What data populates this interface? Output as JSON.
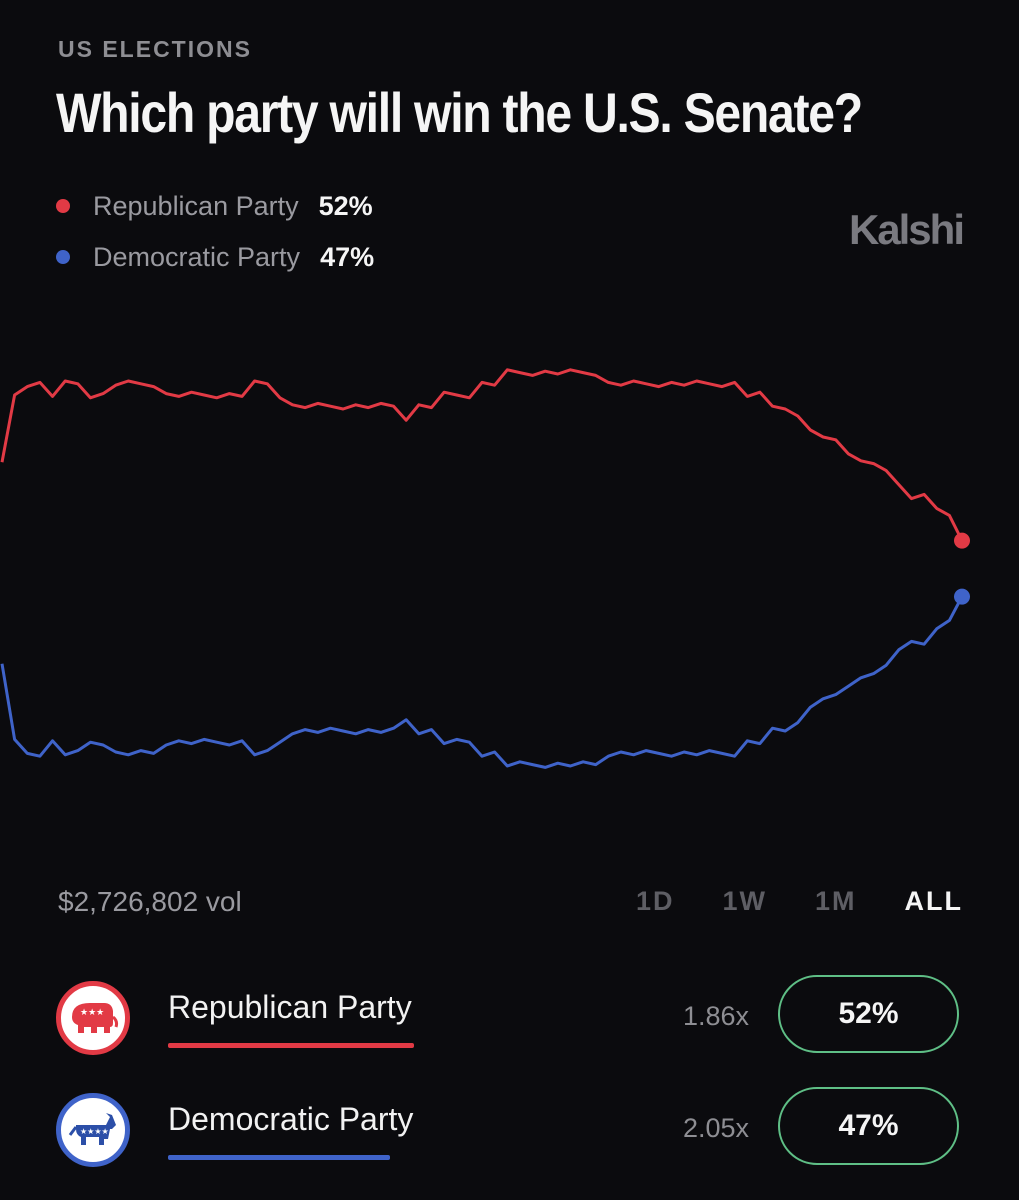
{
  "header": {
    "category": "US ELECTIONS",
    "title": "Which party will win the U.S. Senate?",
    "brand": "Kalshi"
  },
  "legend": [
    {
      "label": "Republican Party",
      "pct": "52%",
      "color": "#e23a45"
    },
    {
      "label": "Democratic Party",
      "pct": "47%",
      "color": "#3f63c9"
    }
  ],
  "chart_data": {
    "type": "line",
    "grid": false,
    "legend": "top-left",
    "ylim": [
      0,
      100
    ],
    "series": [
      {
        "name": "Republican Party",
        "color": "#e23a45",
        "values": [
          59,
          65,
          66,
          66,
          65,
          66,
          66,
          65,
          65,
          66,
          66,
          66,
          66,
          65,
          65,
          65,
          65,
          65,
          65,
          65,
          66,
          66,
          65,
          64,
          64,
          64,
          64,
          64,
          64,
          64,
          64,
          64,
          63,
          64,
          64,
          65,
          65,
          65,
          66,
          66,
          67,
          67,
          67,
          67,
          67,
          67,
          67,
          67,
          66,
          66,
          66,
          66,
          66,
          66,
          66,
          66,
          66,
          66,
          66,
          65,
          65,
          64,
          64,
          63,
          62,
          61,
          61,
          60,
          59,
          59,
          58,
          57,
          56,
          56,
          55,
          54,
          52
        ]
      },
      {
        "name": "Democratic Party",
        "color": "#3f63c9",
        "values": [
          41,
          34,
          33,
          33,
          34,
          33,
          33,
          34,
          34,
          33,
          33,
          33,
          33,
          34,
          34,
          34,
          34,
          34,
          34,
          34,
          33,
          33,
          34,
          35,
          35,
          35,
          35,
          35,
          35,
          35,
          35,
          35,
          36,
          35,
          35,
          34,
          34,
          34,
          33,
          33,
          32,
          32,
          32,
          32,
          32,
          32,
          32,
          32,
          33,
          33,
          33,
          33,
          33,
          33,
          33,
          33,
          33,
          33,
          33,
          34,
          34,
          35,
          35,
          36,
          37,
          38,
          38,
          39,
          40,
          40,
          41,
          42,
          43,
          43,
          44,
          45,
          47
        ]
      }
    ]
  },
  "footer": {
    "volume": "$2,726,802 vol",
    "ranges": [
      "1D",
      "1W",
      "1M",
      "ALL"
    ],
    "active_range": "ALL"
  },
  "outcomes": [
    {
      "name": "Republican Party",
      "multiplier": "1.86x",
      "pct": "52%",
      "color": "#e23a45",
      "icon": "republican-elephant-icon"
    },
    {
      "name": "Democratic Party",
      "multiplier": "2.05x",
      "pct": "47%",
      "color": "#3f63c9",
      "icon": "democratic-donkey-icon"
    }
  ]
}
